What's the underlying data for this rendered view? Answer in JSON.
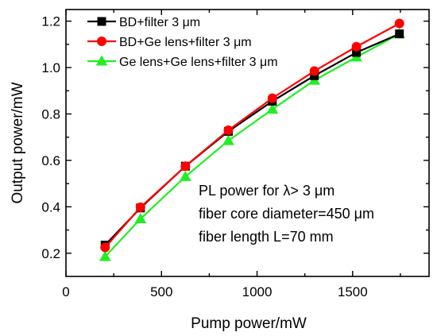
{
  "chart_data": {
    "type": "line",
    "xlabel": "Pump power/mW",
    "ylabel": "Output power/mW",
    "xlim": [
      0,
      1900
    ],
    "ylim": [
      0.1,
      1.25
    ],
    "xticks": [
      0,
      500,
      1000,
      1500
    ],
    "yticks": [
      0.2,
      0.4,
      0.6,
      0.8,
      1.0,
      1.2
    ],
    "xtick_labels": [
      "0",
      "500",
      "1000",
      "1500"
    ],
    "ytick_labels": [
      "0.2",
      "0.4",
      "0.6",
      "0.8",
      "1.0",
      "1.2"
    ],
    "grid": false,
    "legend_position": "top-left",
    "annotations": [
      "PL power for λ> 3 μm",
      "fiber core diameter=450 μm",
      "fiber length L=70 mm"
    ],
    "series": [
      {
        "name": "BD+filter 3 μm",
        "color": "#000000",
        "marker": "square",
        "x": [
          205,
          390,
          625,
          850,
          1080,
          1300,
          1520,
          1745
        ],
        "y": [
          0.235,
          0.395,
          0.575,
          0.725,
          0.855,
          0.965,
          1.065,
          1.145
        ]
      },
      {
        "name": "BD+Ge lens+filter 3 μm",
        "color": "#ff0000",
        "marker": "circle",
        "x": [
          205,
          390,
          625,
          850,
          1080,
          1300,
          1520,
          1745
        ],
        "y": [
          0.225,
          0.398,
          0.575,
          0.73,
          0.868,
          0.985,
          1.09,
          1.19
        ]
      },
      {
        "name": "Ge lens+Ge lens+filter 3 μm",
        "color": "#22ee22",
        "marker": "triangle",
        "x": [
          205,
          390,
          625,
          850,
          1080,
          1300,
          1520,
          1745
        ],
        "y": [
          0.185,
          0.348,
          0.53,
          0.685,
          0.82,
          0.945,
          1.045,
          1.145
        ]
      }
    ]
  }
}
